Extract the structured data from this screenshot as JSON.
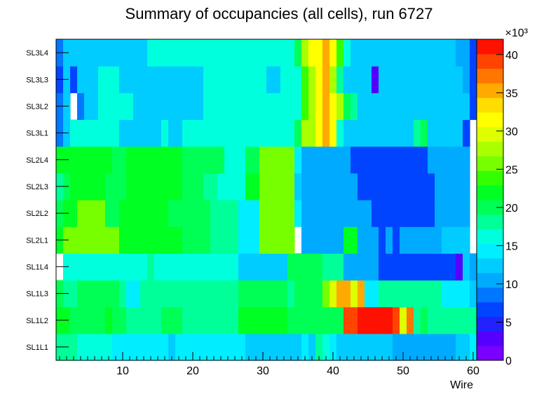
{
  "chart_data": {
    "type": "heatmap",
    "title": "Summary of occupancies (all cells),      run 6727",
    "xlabel": "Wire",
    "ylabel": "",
    "xlim": [
      0.5,
      60.5
    ],
    "x_ticks": [
      10,
      20,
      30,
      40,
      50,
      60
    ],
    "y_categories": [
      "SL1L1",
      "SL1L2",
      "SL1L3",
      "SL1L4",
      "SL2L1",
      "SL2L2",
      "SL2L3",
      "SL2L4",
      "SL3L1",
      "SL3L2",
      "SL3L3",
      "SL3L4"
    ],
    "zlim": [
      0,
      42000
    ],
    "z_ticks": [
      "0",
      "5",
      "10",
      "15",
      "20",
      "25",
      "30",
      "35",
      "40"
    ],
    "z_exponent": "×10³",
    "palette": [
      "#7a00ff",
      "#5500ff",
      "#2222ff",
      "#0044ff",
      "#0077ff",
      "#00aaff",
      "#00ccff",
      "#00eeff",
      "#00ffdd",
      "#00ff99",
      "#00ff55",
      "#00ff22",
      "#33ff00",
      "#77ff00",
      "#aaff00",
      "#ddff00",
      "#ffff00",
      "#ffdd00",
      "#ffaa00",
      "#ff7700",
      "#ff4400",
      "#ff1100"
    ],
    "rows": {
      "SL1L1": [
        18,
        18,
        18,
        16,
        16,
        16,
        16,
        16,
        15,
        15,
        15,
        15,
        15,
        15,
        15,
        15,
        12,
        15,
        15,
        15,
        15,
        15,
        15,
        15,
        15,
        15,
        15,
        12,
        12,
        12,
        12,
        12,
        12,
        12,
        12,
        15,
        12,
        18,
        16,
        15,
        12,
        12,
        12,
        12,
        12,
        12,
        12,
        12,
        10,
        10,
        10,
        10,
        10,
        10,
        10,
        10,
        10,
        12,
        12,
        15
      ],
      "SL1L2": [
        22,
        22,
        20,
        20,
        20,
        20,
        20,
        22,
        20,
        20,
        18,
        18,
        18,
        18,
        18,
        20,
        20,
        20,
        18,
        18,
        18,
        18,
        18,
        18,
        18,
        18,
        22,
        22,
        22,
        22,
        22,
        22,
        22,
        20,
        20,
        20,
        20,
        20,
        20,
        20,
        20,
        40,
        40,
        42,
        42,
        42,
        42,
        42,
        40,
        30,
        38,
        18,
        20,
        18,
        18,
        18,
        18,
        18,
        18,
        18
      ],
      "SL1L3": [
        20,
        18,
        18,
        20,
        20,
        20,
        20,
        20,
        20,
        18,
        15,
        15,
        18,
        18,
        18,
        18,
        18,
        18,
        18,
        18,
        18,
        18,
        18,
        18,
        18,
        18,
        20,
        20,
        20,
        20,
        20,
        20,
        20,
        18,
        20,
        20,
        20,
        20,
        25,
        30,
        35,
        35,
        30,
        35,
        15,
        15,
        18,
        18,
        18,
        18,
        18,
        18,
        18,
        18,
        18,
        15,
        15,
        15,
        15,
        12
      ],
      "SL1L4": [
        0,
        16,
        16,
        16,
        16,
        16,
        16,
        16,
        16,
        16,
        16,
        16,
        16,
        18,
        16,
        16,
        16,
        16,
        16,
        16,
        16,
        16,
        16,
        16,
        16,
        16,
        12,
        12,
        12,
        12,
        12,
        12,
        12,
        20,
        20,
        20,
        20,
        20,
        18,
        18,
        18,
        10,
        10,
        10,
        10,
        10,
        6,
        6,
        6,
        6,
        6,
        6,
        6,
        6,
        6,
        6,
        6,
        3,
        12,
        10
      ],
      "SL2L1": [
        22,
        25,
        25,
        25,
        25,
        25,
        25,
        25,
        25,
        22,
        22,
        22,
        22,
        22,
        22,
        22,
        22,
        22,
        20,
        20,
        20,
        20,
        18,
        18,
        18,
        18,
        15,
        15,
        15,
        25,
        25,
        25,
        25,
        25,
        0,
        10,
        10,
        10,
        10,
        10,
        10,
        22,
        22,
        10,
        10,
        10,
        6,
        10,
        6,
        10,
        10,
        10,
        10,
        10,
        10,
        12,
        12,
        12,
        12,
        0
      ],
      "SL2L2": [
        20,
        22,
        22,
        25,
        25,
        25,
        25,
        20,
        20,
        22,
        22,
        22,
        22,
        22,
        22,
        22,
        20,
        20,
        20,
        20,
        20,
        20,
        18,
        18,
        18,
        18,
        15,
        15,
        15,
        25,
        25,
        25,
        25,
        25,
        15,
        10,
        10,
        10,
        10,
        10,
        10,
        10,
        10,
        10,
        10,
        6,
        6,
        6,
        6,
        6,
        6,
        6,
        6,
        6,
        10,
        10,
        10,
        10,
        10,
        0
      ],
      "SL2L3": [
        18,
        20,
        22,
        22,
        22,
        22,
        22,
        20,
        20,
        20,
        22,
        22,
        22,
        22,
        22,
        22,
        22,
        22,
        20,
        20,
        20,
        18,
        18,
        16,
        16,
        16,
        16,
        22,
        22,
        25,
        25,
        25,
        25,
        25,
        12,
        10,
        10,
        10,
        10,
        10,
        10,
        10,
        10,
        6,
        6,
        6,
        6,
        6,
        6,
        6,
        6,
        6,
        6,
        6,
        10,
        10,
        10,
        10,
        10,
        0
      ],
      "SL2L4": [
        22,
        22,
        22,
        22,
        22,
        22,
        22,
        22,
        20,
        20,
        22,
        22,
        22,
        22,
        22,
        22,
        22,
        22,
        20,
        20,
        20,
        20,
        20,
        20,
        16,
        16,
        16,
        20,
        20,
        25,
        25,
        25,
        25,
        25,
        15,
        10,
        10,
        10,
        10,
        10,
        10,
        10,
        6,
        6,
        6,
        6,
        6,
        6,
        6,
        6,
        6,
        6,
        6,
        10,
        10,
        10,
        10,
        10,
        10,
        0
      ],
      "SL3L1": [
        8,
        12,
        16,
        16,
        16,
        16,
        16,
        16,
        16,
        12,
        12,
        12,
        12,
        12,
        12,
        16,
        12,
        12,
        16,
        16,
        16,
        16,
        16,
        16,
        16,
        16,
        16,
        16,
        16,
        16,
        16,
        16,
        16,
        16,
        20,
        28,
        28,
        32,
        35,
        32,
        16,
        12,
        12,
        12,
        12,
        12,
        12,
        12,
        12,
        12,
        12,
        18,
        20,
        12,
        12,
        12,
        12,
        12,
        6,
        0
      ],
      "SL3L2": [
        8,
        12,
        0,
        8,
        12,
        12,
        16,
        16,
        16,
        16,
        16,
        12,
        12,
        12,
        12,
        12,
        12,
        12,
        12,
        12,
        12,
        16,
        16,
        16,
        16,
        16,
        16,
        16,
        16,
        16,
        16,
        16,
        16,
        16,
        16,
        24,
        28,
        32,
        35,
        32,
        28,
        20,
        18,
        12,
        12,
        12,
        12,
        12,
        12,
        12,
        12,
        12,
        12,
        12,
        12,
        12,
        12,
        12,
        12,
        6
      ],
      "SL3L3": [
        6,
        12,
        6,
        12,
        12,
        12,
        16,
        16,
        16,
        12,
        12,
        12,
        12,
        12,
        12,
        12,
        12,
        12,
        12,
        12,
        12,
        16,
        16,
        16,
        16,
        16,
        16,
        16,
        16,
        16,
        12,
        12,
        16,
        16,
        16,
        24,
        28,
        32,
        35,
        28,
        18,
        12,
        12,
        12,
        12,
        3,
        12,
        12,
        12,
        12,
        12,
        12,
        12,
        12,
        12,
        12,
        12,
        12,
        10,
        6
      ],
      "SL3L4": [
        8,
        12,
        12,
        12,
        12,
        12,
        12,
        12,
        12,
        12,
        12,
        12,
        12,
        16,
        16,
        16,
        16,
        16,
        16,
        16,
        16,
        16,
        16,
        16,
        16,
        16,
        16,
        16,
        16,
        16,
        16,
        16,
        16,
        16,
        20,
        28,
        32,
        32,
        35,
        32,
        24,
        16,
        12,
        12,
        12,
        12,
        12,
        12,
        12,
        12,
        12,
        12,
        12,
        12,
        12,
        12,
        12,
        10,
        10,
        6
      ]
    }
  }
}
